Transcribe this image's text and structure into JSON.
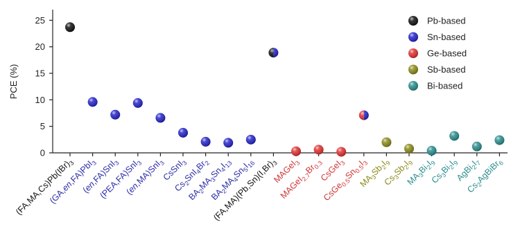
{
  "chart_data": {
    "type": "scatter",
    "title": "",
    "ylabel": "PCE (%)",
    "xlabel": "",
    "ylim": [
      0,
      27
    ],
    "yticks": [
      0,
      5,
      10,
      15,
      20,
      25
    ],
    "grid": false,
    "legend_position": "top-right",
    "series": [
      {
        "name": "Pb-based",
        "color": "#111111",
        "label_color": "#111111"
      },
      {
        "name": "Sn-based",
        "color": "#2424c8",
        "label_color": "#2d2da8"
      },
      {
        "name": "Ge-based",
        "color": "#e03131",
        "label_color": "#d03636"
      },
      {
        "name": "Sb-based",
        "color": "#8a8a1a",
        "label_color": "#8a8a1a"
      },
      {
        "name": "Bi-based",
        "color": "#2a8c8c",
        "label_color": "#2a8c8c"
      }
    ],
    "points": [
      {
        "label": "(FA,MA,Cs)Pb(IBr)3",
        "label_parts": [
          [
            "(FA,MA,Cs)Pb(IBr)",
            ""
          ],
          [
            "3",
            "sub"
          ]
        ],
        "series": "Pb-based",
        "y": 23.7
      },
      {
        "label": "(GA,en,FA)PbI3",
        "label_parts": [
          [
            "(GA,",
            ""
          ],
          [
            "en",
            "i"
          ],
          [
            ",FA)PbI",
            ""
          ],
          [
            "3",
            "sub"
          ]
        ],
        "series": "Sn-based",
        "y": 9.6
      },
      {
        "label": "(en,FA)SnI3",
        "label_parts": [
          [
            "(",
            ""
          ],
          [
            "en",
            "i"
          ],
          [
            ",FA)SnI",
            ""
          ],
          [
            "3",
            "sub"
          ]
        ],
        "series": "Sn-based",
        "y": 7.2
      },
      {
        "label": "(PEA,FA)SnI3",
        "label_parts": [
          [
            "(PEA,FA)SnI",
            ""
          ],
          [
            "3",
            "sub"
          ]
        ],
        "series": "Sn-based",
        "y": 9.4
      },
      {
        "label": "(en,MA)SnI3",
        "label_parts": [
          [
            "(",
            ""
          ],
          [
            "en",
            "i"
          ],
          [
            ",MA)SnI",
            ""
          ],
          [
            "3",
            "sub"
          ]
        ],
        "series": "Sn-based",
        "y": 6.6
      },
      {
        "label": "CsSnI3",
        "label_parts": [
          [
            "CsSnI",
            ""
          ],
          [
            "3",
            "sub"
          ]
        ],
        "series": "Sn-based",
        "y": 3.8
      },
      {
        "label": "Cs2SnI4Br2",
        "label_parts": [
          [
            "Cs",
            ""
          ],
          [
            "2",
            "sub"
          ],
          [
            "SnI",
            ""
          ],
          [
            "4",
            "sub"
          ],
          [
            "Br",
            ""
          ],
          [
            "2",
            "sub"
          ]
        ],
        "series": "Sn-based",
        "y": 2.1
      },
      {
        "label": "BA2MA3Sn4I13",
        "label_parts": [
          [
            "BA",
            ""
          ],
          [
            "2",
            "sub"
          ],
          [
            "MA",
            ""
          ],
          [
            "3",
            "sub"
          ],
          [
            "Sn",
            ""
          ],
          [
            "4",
            "sub"
          ],
          [
            "I",
            ""
          ],
          [
            "13",
            "sub"
          ]
        ],
        "series": "Sn-based",
        "y": 1.9
      },
      {
        "label": "BA2MA4Sn5I16",
        "label_parts": [
          [
            "BA",
            ""
          ],
          [
            "2",
            "sub"
          ],
          [
            "MA",
            ""
          ],
          [
            "4",
            "sub"
          ],
          [
            "Sn",
            ""
          ],
          [
            "5",
            "sub"
          ],
          [
            "I",
            ""
          ],
          [
            "16",
            "sub"
          ]
        ],
        "series": "Sn-based",
        "y": 2.5
      },
      {
        "label": "(FA,MA)(Pb,Sn)(I,Br)3",
        "label_parts": [
          [
            "(FA,MA)(Pb,Sn)(I,Br)",
            ""
          ],
          [
            "3",
            "sub"
          ]
        ],
        "series": "Pb-based",
        "series2": "Sn-based",
        "y": 18.9
      },
      {
        "label": "MAGeI3",
        "label_parts": [
          [
            "MAGeI",
            ""
          ],
          [
            "3",
            "sub"
          ]
        ],
        "series": "Ge-based",
        "y": 0.3
      },
      {
        "label": "MAGeI2.7Br0.3",
        "label_parts": [
          [
            "MAGeI",
            ""
          ],
          [
            "2.7",
            "sub"
          ],
          [
            "Br",
            ""
          ],
          [
            "0.3",
            "sub"
          ]
        ],
        "series": "Ge-based",
        "y": 0.6
      },
      {
        "label": "CsGeI3",
        "label_parts": [
          [
            "CsGeI",
            ""
          ],
          [
            "3",
            "sub"
          ]
        ],
        "series": "Ge-based",
        "y": 0.2
      },
      {
        "label": "CsGe0.5Sn0.5I3",
        "label_parts": [
          [
            "CsGe",
            ""
          ],
          [
            "0.5",
            "sub"
          ],
          [
            "Sn",
            ""
          ],
          [
            "0.5",
            "sub"
          ],
          [
            "I",
            ""
          ],
          [
            "3",
            "sub"
          ]
        ],
        "series": "Ge-based",
        "series2": "Sn-based",
        "y": 7.1
      },
      {
        "label": "MA3Sb2I9",
        "label_parts": [
          [
            "MA",
            ""
          ],
          [
            "3",
            "sub"
          ],
          [
            "Sb",
            ""
          ],
          [
            "2",
            "sub"
          ],
          [
            "I",
            ""
          ],
          [
            "9",
            "sub"
          ]
        ],
        "series": "Sb-based",
        "y": 2.0
      },
      {
        "label": "Cs3Sb2I9",
        "label_parts": [
          [
            "Cs",
            ""
          ],
          [
            "3",
            "sub"
          ],
          [
            "Sb",
            ""
          ],
          [
            "2",
            "sub"
          ],
          [
            "I",
            ""
          ],
          [
            "9",
            "sub"
          ]
        ],
        "series": "Sb-based",
        "y": 0.8
      },
      {
        "label": "MA3Bi2I9",
        "label_parts": [
          [
            "MA",
            ""
          ],
          [
            "3",
            "sub"
          ],
          [
            "Bi",
            ""
          ],
          [
            "2",
            "sub"
          ],
          [
            "I",
            ""
          ],
          [
            "9",
            "sub"
          ]
        ],
        "series": "Bi-based",
        "y": 0.4
      },
      {
        "label": "Cs3Bi2I9",
        "label_parts": [
          [
            "Cs",
            ""
          ],
          [
            "3",
            "sub"
          ],
          [
            "Bi",
            ""
          ],
          [
            "2",
            "sub"
          ],
          [
            "I",
            ""
          ],
          [
            "9",
            "sub"
          ]
        ],
        "series": "Bi-based",
        "y": 3.2
      },
      {
        "label": "AgBi2I7",
        "label_parts": [
          [
            "AgBi",
            ""
          ],
          [
            "2",
            "sub"
          ],
          [
            "I",
            ""
          ],
          [
            "7",
            "sub"
          ]
        ],
        "series": "Bi-based",
        "y": 1.2
      },
      {
        "label": "Cs2AgBiBr6",
        "label_parts": [
          [
            "Cs",
            ""
          ],
          [
            "2",
            "sub"
          ],
          [
            "AgBiBr",
            ""
          ],
          [
            "6",
            "sub"
          ]
        ],
        "series": "Bi-based",
        "y": 2.4
      }
    ]
  }
}
